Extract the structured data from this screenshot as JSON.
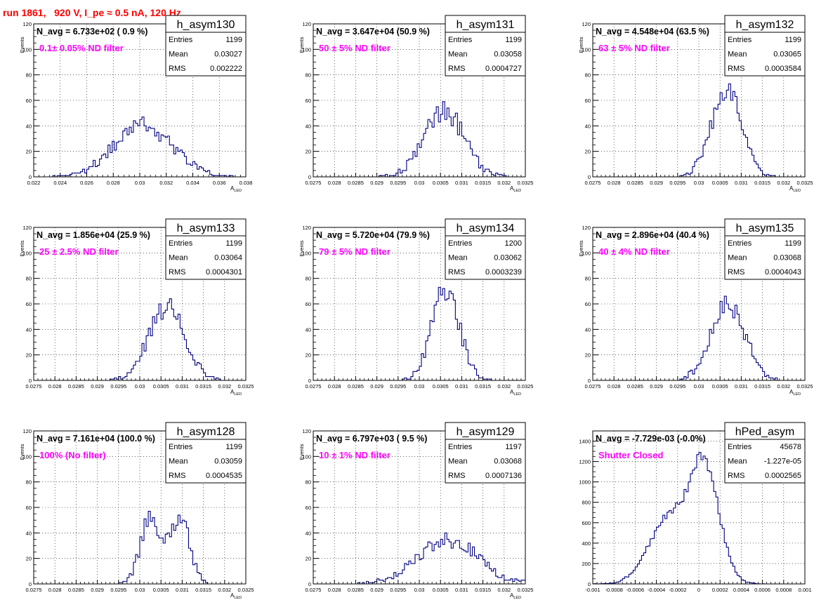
{
  "run_title": "run 1861,   920 V, I_pe ≈ 0.5 nA, 120 Hz",
  "colors": {
    "histogram": "#000080",
    "annotation": "#ff00ff",
    "title": "#ff0000",
    "axis": "#000000",
    "grid": "#000000"
  },
  "chart_data": [
    {
      "type": "bar",
      "hist_name": "h_asym130",
      "navg_text": "N_avg = 6.733e+02 ( 0.9 %)",
      "filter_text": "0.1± 0.05% ND filter",
      "stats": [
        {
          "label": "Entries",
          "value": "1199"
        },
        {
          "label": "Mean",
          "value": "0.03027"
        },
        {
          "label": "RMS",
          "value": "0.002222"
        }
      ],
      "ylabel": "Events",
      "xlabel": "A",
      "xlabel_sub": "LED",
      "xlim": [
        0.022,
        0.038
      ],
      "ylim": [
        0,
        120
      ],
      "grid": true,
      "xticks": [
        0.022,
        0.024,
        0.026,
        0.028,
        0.03,
        0.032,
        0.034,
        0.036,
        0.038
      ],
      "xtick_labels": [
        "0.022",
        "0.024",
        "0.026",
        "0.028",
        "0.03",
        "0.032",
        "0.034",
        "0.036",
        "0.038"
      ],
      "yticks": [
        0,
        20,
        40,
        60,
        80,
        100,
        120
      ],
      "ytick_labels": [
        "0",
        "20",
        "40",
        "60",
        "80",
        "100",
        "120"
      ],
      "dist": {
        "kind": "gauss",
        "peaks": [
          {
            "mu": 0.03027,
            "sigma": 0.00222,
            "amp": 40
          }
        ]
      }
    },
    {
      "type": "bar",
      "hist_name": "h_asym131",
      "navg_text": "N_avg = 3.647e+04 (50.9 %)",
      "filter_text": "50 ± 5% ND filter",
      "stats": [
        {
          "label": "Entries",
          "value": "1199"
        },
        {
          "label": "Mean",
          "value": "0.03058"
        },
        {
          "label": "RMS",
          "value": "0.0004727"
        }
      ],
      "ylabel": "Events",
      "xlabel": "A",
      "xlabel_sub": "LED",
      "xlim": [
        0.0275,
        0.0325
      ],
      "ylim": [
        0,
        120
      ],
      "grid": true,
      "xticks": [
        0.0275,
        0.028,
        0.0285,
        0.029,
        0.0295,
        0.03,
        0.0305,
        0.031,
        0.0315,
        0.032,
        0.0325
      ],
      "xtick_labels": [
        "0.0275",
        "0.028",
        "0.0285",
        "0.029",
        "0.0295",
        "0.03",
        "0.0305",
        "0.031",
        "0.0315",
        "0.032",
        "0.0325"
      ],
      "yticks": [
        0,
        20,
        40,
        60,
        80,
        100,
        120
      ],
      "ytick_labels": [
        "0",
        "20",
        "40",
        "60",
        "80",
        "100",
        "120"
      ],
      "dist": {
        "kind": "gauss",
        "peaks": [
          {
            "mu": 0.03058,
            "sigma": 0.00047,
            "amp": 52
          }
        ]
      }
    },
    {
      "type": "bar",
      "hist_name": "h_asym132",
      "navg_text": "N_avg = 4.548e+04 (63.5 %)",
      "filter_text": "63 ± 5% ND filter",
      "stats": [
        {
          "label": "Entries",
          "value": "1199"
        },
        {
          "label": "Mean",
          "value": "0.03065"
        },
        {
          "label": "RMS",
          "value": "0.0003584"
        }
      ],
      "ylabel": "Events",
      "xlabel": "A",
      "xlabel_sub": "LED",
      "xlim": [
        0.0275,
        0.0325
      ],
      "ylim": [
        0,
        120
      ],
      "grid": true,
      "xticks": [
        0.0275,
        0.028,
        0.0285,
        0.029,
        0.0295,
        0.03,
        0.0305,
        0.031,
        0.0315,
        0.032,
        0.0325
      ],
      "xtick_labels": [
        "0.0275",
        "0.028",
        "0.0285",
        "0.029",
        "0.0295",
        "0.03",
        "0.0305",
        "0.031",
        "0.0315",
        "0.032",
        "0.0325"
      ],
      "yticks": [
        0,
        20,
        40,
        60,
        80,
        100,
        120
      ],
      "ytick_labels": [
        "0",
        "20",
        "40",
        "60",
        "80",
        "100",
        "120"
      ],
      "dist": {
        "kind": "gauss",
        "peaks": [
          {
            "mu": 0.03065,
            "sigma": 0.00036,
            "amp": 68
          }
        ]
      }
    },
    {
      "type": "bar",
      "hist_name": "h_asym133",
      "navg_text": "N_avg = 1.856e+04 (25.9 %)",
      "filter_text": "25 ± 2.5% ND filter",
      "stats": [
        {
          "label": "Entries",
          "value": "1199"
        },
        {
          "label": "Mean",
          "value": "0.03064"
        },
        {
          "label": "RMS",
          "value": "0.0004301"
        }
      ],
      "ylabel": "Events",
      "xlabel": "A",
      "xlabel_sub": "LED",
      "xlim": [
        0.0275,
        0.0325
      ],
      "ylim": [
        0,
        120
      ],
      "grid": true,
      "xticks": [
        0.0275,
        0.028,
        0.0285,
        0.029,
        0.0295,
        0.03,
        0.0305,
        0.031,
        0.0315,
        0.032,
        0.0325
      ],
      "xtick_labels": [
        "0.0275",
        "0.028",
        "0.0285",
        "0.029",
        "0.0295",
        "0.03",
        "0.0305",
        "0.031",
        "0.0315",
        "0.032",
        "0.0325"
      ],
      "yticks": [
        0,
        20,
        40,
        60,
        80,
        100,
        120
      ],
      "ytick_labels": [
        "0",
        "20",
        "40",
        "60",
        "80",
        "100",
        "120"
      ],
      "dist": {
        "kind": "gauss",
        "peaks": [
          {
            "mu": 0.03064,
            "sigma": 0.00043,
            "amp": 58
          }
        ]
      }
    },
    {
      "type": "bar",
      "hist_name": "h_asym134",
      "navg_text": "N_avg = 5.720e+04 (79.9 %)",
      "filter_text": "79 ± 5% ND filter",
      "stats": [
        {
          "label": "Entries",
          "value": "1200"
        },
        {
          "label": "Mean",
          "value": "0.03062"
        },
        {
          "label": "RMS",
          "value": "0.0003239"
        }
      ],
      "ylabel": "Events",
      "xlabel": "A",
      "xlabel_sub": "LED",
      "xlim": [
        0.0275,
        0.0325
      ],
      "ylim": [
        0,
        120
      ],
      "grid": true,
      "xticks": [
        0.0275,
        0.028,
        0.0285,
        0.029,
        0.0295,
        0.03,
        0.0305,
        0.031,
        0.0315,
        0.032,
        0.0325
      ],
      "xtick_labels": [
        "0.0275",
        "0.028",
        "0.0285",
        "0.029",
        "0.0295",
        "0.03",
        "0.0305",
        "0.031",
        "0.0315",
        "0.032",
        "0.0325"
      ],
      "yticks": [
        0,
        20,
        40,
        60,
        80,
        100,
        120
      ],
      "ytick_labels": [
        "0",
        "20",
        "40",
        "60",
        "80",
        "100",
        "120"
      ],
      "dist": {
        "kind": "gauss",
        "peaks": [
          {
            "mu": 0.03062,
            "sigma": 0.00032,
            "amp": 72
          }
        ]
      }
    },
    {
      "type": "bar",
      "hist_name": "h_asym135",
      "navg_text": "N_avg = 2.896e+04 (40.4 %)",
      "filter_text": "40 ± 4% ND filter",
      "stats": [
        {
          "label": "Entries",
          "value": "1199"
        },
        {
          "label": "Mean",
          "value": "0.03068"
        },
        {
          "label": "RMS",
          "value": "0.0004043"
        }
      ],
      "ylabel": "Events",
      "xlabel": "A",
      "xlabel_sub": "LED",
      "xlim": [
        0.0275,
        0.0325
      ],
      "ylim": [
        0,
        120
      ],
      "grid": true,
      "xticks": [
        0.0275,
        0.028,
        0.0285,
        0.029,
        0.0295,
        0.03,
        0.0305,
        0.031,
        0.0315,
        0.032,
        0.0325
      ],
      "xtick_labels": [
        "0.0275",
        "0.028",
        "0.0285",
        "0.029",
        "0.0295",
        "0.03",
        "0.0305",
        "0.031",
        "0.0315",
        "0.032",
        "0.0325"
      ],
      "yticks": [
        0,
        20,
        40,
        60,
        80,
        100,
        120
      ],
      "ytick_labels": [
        "0",
        "20",
        "40",
        "60",
        "80",
        "100",
        "120"
      ],
      "dist": {
        "kind": "gauss",
        "peaks": [
          {
            "mu": 0.03068,
            "sigma": 0.0004,
            "amp": 60
          }
        ]
      }
    },
    {
      "type": "bar",
      "hist_name": "h_asym128",
      "navg_text": "N_avg = 7.161e+04 (100.0 %)",
      "filter_text": "100% (No filter)",
      "stats": [
        {
          "label": "Entries",
          "value": "1199"
        },
        {
          "label": "Mean",
          "value": "0.03059"
        },
        {
          "label": "RMS",
          "value": "0.0004535"
        }
      ],
      "ylabel": "Events",
      "xlabel": "A",
      "xlabel_sub": "LED",
      "xlim": [
        0.0275,
        0.0325
      ],
      "ylim": [
        0,
        120
      ],
      "grid": true,
      "xticks": [
        0.0275,
        0.028,
        0.0285,
        0.029,
        0.0295,
        0.03,
        0.0305,
        0.031,
        0.0315,
        0.032,
        0.0325
      ],
      "xtick_labels": [
        "0.0275",
        "0.028",
        "0.0285",
        "0.029",
        "0.0295",
        "0.03",
        "0.0305",
        "0.031",
        "0.0315",
        "0.032",
        "0.0325"
      ],
      "yticks": [
        0,
        20,
        40,
        60,
        80,
        100,
        120
      ],
      "ytick_labels": [
        "0",
        "20",
        "40",
        "60",
        "80",
        "100",
        "120"
      ],
      "dist": {
        "kind": "gauss",
        "peaks": [
          {
            "mu": 0.03022,
            "sigma": 0.00022,
            "amp": 44
          },
          {
            "mu": 0.03097,
            "sigma": 0.00022,
            "amp": 44
          },
          {
            "mu": 0.0306,
            "sigma": 0.0003,
            "amp": 16
          }
        ]
      }
    },
    {
      "type": "bar",
      "hist_name": "h_asym129",
      "navg_text": "N_avg = 6.797e+03 ( 9.5 %)",
      "filter_text": "10 ± 1% ND filter",
      "stats": [
        {
          "label": "Entries",
          "value": "1197"
        },
        {
          "label": "Mean",
          "value": "0.03068"
        },
        {
          "label": "RMS",
          "value": "0.0007136"
        }
      ],
      "ylabel": "Events",
      "xlabel": "A",
      "xlabel_sub": "LED",
      "xlim": [
        0.0275,
        0.0325
      ],
      "ylim": [
        0,
        120
      ],
      "grid": true,
      "xticks": [
        0.0275,
        0.028,
        0.0285,
        0.029,
        0.0295,
        0.03,
        0.0305,
        0.031,
        0.0315,
        0.032,
        0.0325
      ],
      "xtick_labels": [
        "0.0275",
        "0.028",
        "0.0285",
        "0.029",
        "0.0295",
        "0.03",
        "0.0305",
        "0.031",
        "0.0315",
        "0.032",
        "0.0325"
      ],
      "yticks": [
        0,
        20,
        40,
        60,
        80,
        100,
        120
      ],
      "ytick_labels": [
        "0",
        "20",
        "40",
        "60",
        "80",
        "100",
        "120"
      ],
      "dist": {
        "kind": "gauss",
        "peaks": [
          {
            "mu": 0.03068,
            "sigma": 0.00071,
            "amp": 34
          }
        ]
      }
    },
    {
      "type": "bar",
      "hist_name": "hPed_asym",
      "navg_text": "N_avg = -7.729e-03 (-0.0%)",
      "filter_text": "Shutter Closed",
      "stats": [
        {
          "label": "Entries",
          "value": "45678"
        },
        {
          "label": "Mean",
          "value": "-1.227e-05"
        },
        {
          "label": "RMS",
          "value": "0.0002565"
        }
      ],
      "ylabel": "",
      "xlabel": "",
      "xlabel_sub": "",
      "xlim": [
        -0.001,
        0.001
      ],
      "ylim": [
        0,
        1500
      ],
      "grid": true,
      "xticks": [
        -0.001,
        -0.0008,
        -0.0006,
        -0.0004,
        -0.0002,
        0,
        0.0002,
        0.0004,
        0.0006,
        0.0008,
        0.001
      ],
      "xtick_labels": [
        "-0.001",
        "-0.0008",
        "-0.0006",
        "-0.0004",
        "-0.0002",
        "0",
        "0.0002",
        "0.0004",
        "0.0006",
        "0.0008",
        "0.001"
      ],
      "yticks": [
        0,
        200,
        400,
        600,
        800,
        1000,
        1200,
        1400
      ],
      "ytick_labels": [
        "0",
        "200",
        "400",
        "600",
        "800",
        "1000",
        "1200",
        "1400"
      ],
      "dist": {
        "kind": "gauss",
        "peaks": [
          {
            "mu": 5e-05,
            "sigma": 0.00014,
            "amp": 1150
          },
          {
            "mu": -0.0003,
            "sigma": 0.00018,
            "amp": 620
          }
        ]
      }
    }
  ]
}
